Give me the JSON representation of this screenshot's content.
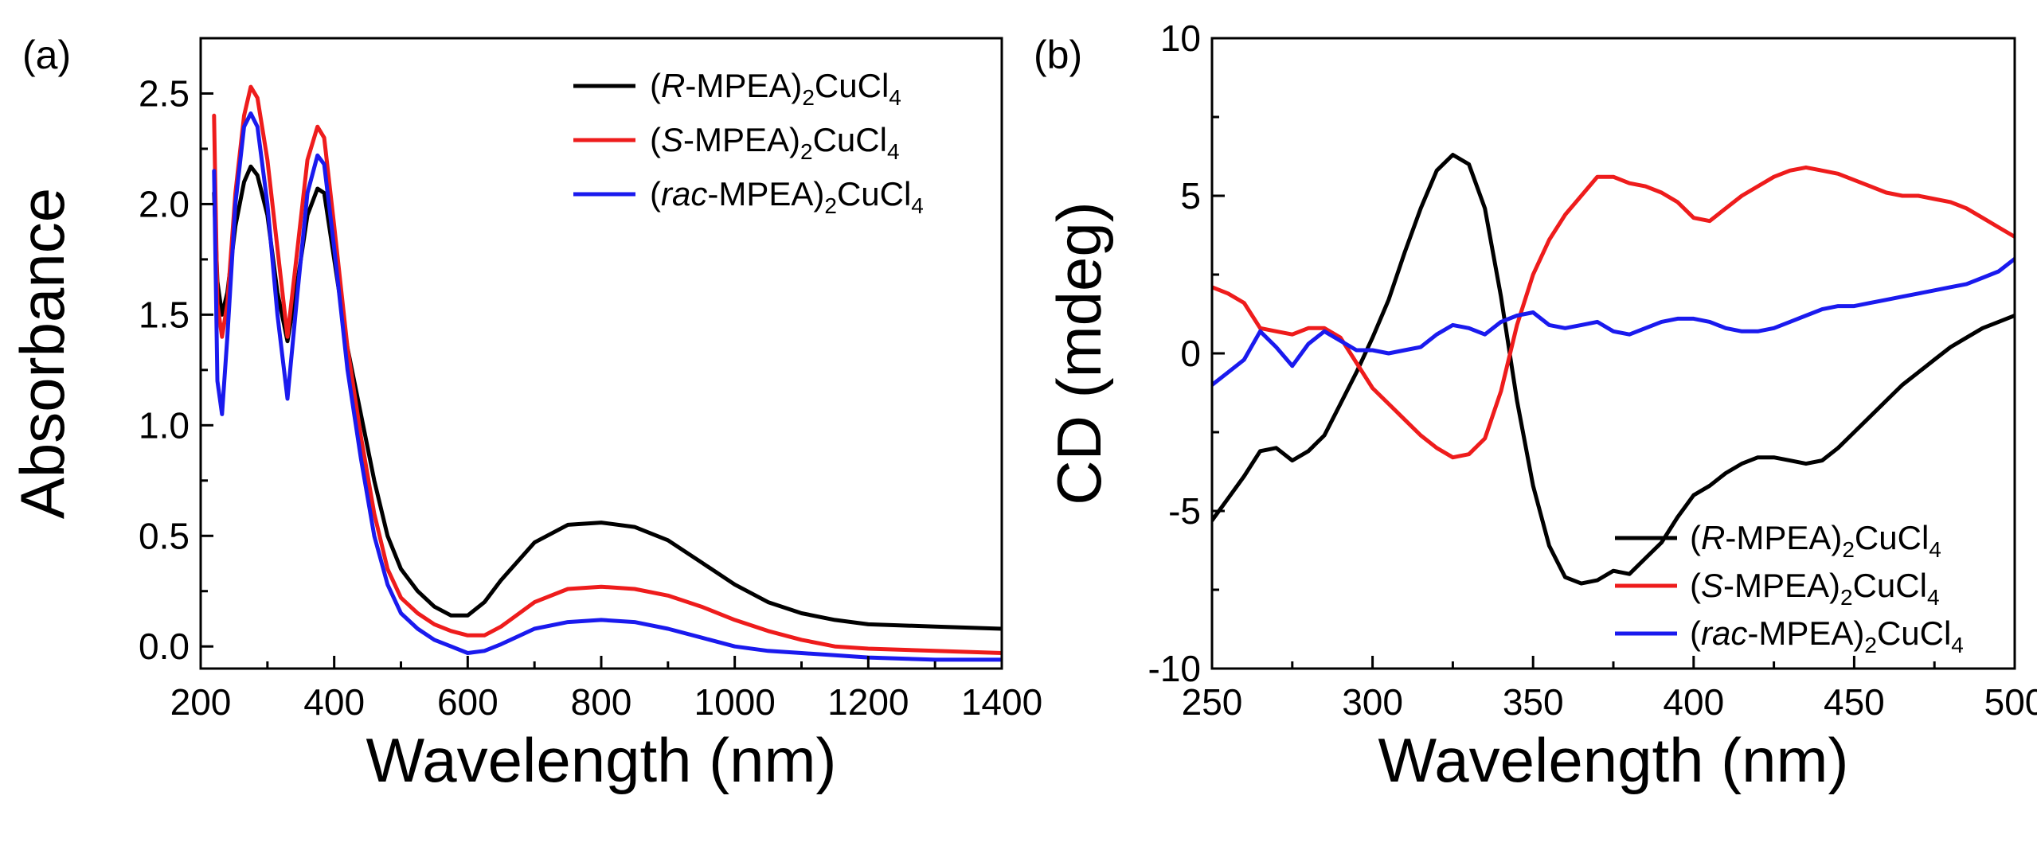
{
  "chart_data": [
    {
      "type": "line",
      "panel_label": "(a)",
      "xlabel": "Wavelength (nm)",
      "ylabel": "Absorbance",
      "xlim": [
        200,
        1400
      ],
      "ylim": [
        -0.1,
        2.75
      ],
      "xticks": [
        200,
        400,
        600,
        800,
        1000,
        1200,
        1400
      ],
      "xtick_labels": [
        "200",
        "400",
        "600",
        "800",
        "1000",
        "1200",
        "1400"
      ],
      "yticks": [
        0.0,
        0.5,
        1.0,
        1.5,
        2.0,
        2.5
      ],
      "ytick_labels": [
        "0.0",
        "0.5",
        "1.0",
        "1.5",
        "2.0",
        "2.5"
      ],
      "legend_position": "top-right",
      "series": [
        {
          "name": "(R-MPEA)2CuCl4",
          "legend": {
            "open": "(",
            "ital": "R",
            "mid": "-MPEA)",
            "sub1": "2",
            "mid2": "CuCl",
            "sub2": "4"
          },
          "color": "#000000",
          "x": [
            220,
            225,
            232,
            240,
            252,
            265,
            275,
            285,
            300,
            315,
            330,
            345,
            360,
            375,
            385,
            400,
            420,
            440,
            460,
            480,
            500,
            525,
            550,
            575,
            600,
            625,
            650,
            700,
            750,
            800,
            850,
            900,
            950,
            1000,
            1050,
            1100,
            1150,
            1200,
            1300,
            1400
          ],
          "y": [
            2.05,
            1.65,
            1.5,
            1.6,
            1.9,
            2.1,
            2.17,
            2.13,
            1.95,
            1.6,
            1.38,
            1.65,
            1.95,
            2.07,
            2.05,
            1.75,
            1.35,
            1.05,
            0.75,
            0.5,
            0.35,
            0.25,
            0.18,
            0.14,
            0.14,
            0.2,
            0.3,
            0.47,
            0.55,
            0.56,
            0.54,
            0.48,
            0.38,
            0.28,
            0.2,
            0.15,
            0.12,
            0.1,
            0.09,
            0.08
          ]
        },
        {
          "name": "(S-MPEA)2CuCl4",
          "legend": {
            "open": "(",
            "ital": "S",
            "mid": "-MPEA)",
            "sub1": "2",
            "mid2": "CuCl",
            "sub2": "4"
          },
          "color": "#ee1c1c",
          "x": [
            220,
            225,
            232,
            240,
            252,
            265,
            275,
            285,
            300,
            315,
            330,
            345,
            360,
            375,
            385,
            400,
            420,
            440,
            460,
            480,
            500,
            525,
            550,
            575,
            600,
            625,
            650,
            700,
            750,
            800,
            850,
            900,
            950,
            1000,
            1050,
            1100,
            1150,
            1200,
            1300,
            1400
          ],
          "y": [
            2.4,
            1.55,
            1.4,
            1.55,
            2.05,
            2.4,
            2.53,
            2.48,
            2.2,
            1.8,
            1.4,
            1.8,
            2.2,
            2.35,
            2.3,
            1.9,
            1.35,
            0.95,
            0.6,
            0.35,
            0.22,
            0.15,
            0.1,
            0.07,
            0.05,
            0.05,
            0.09,
            0.2,
            0.26,
            0.27,
            0.26,
            0.23,
            0.18,
            0.12,
            0.07,
            0.03,
            0.0,
            -0.01,
            -0.02,
            -0.03
          ]
        },
        {
          "name": "(rac-MPEA)2CuCl4",
          "legend": {
            "open": "(",
            "ital": "rac",
            "mid": "-MPEA)",
            "sub1": "2",
            "mid2": "CuCl",
            "sub2": "4"
          },
          "color": "#1a1aee",
          "x": [
            220,
            225,
            232,
            240,
            252,
            265,
            275,
            285,
            300,
            315,
            330,
            345,
            360,
            375,
            385,
            400,
            420,
            440,
            460,
            480,
            500,
            525,
            550,
            575,
            600,
            625,
            650,
            700,
            750,
            800,
            850,
            900,
            950,
            1000,
            1050,
            1100,
            1150,
            1200,
            1300,
            1400
          ],
          "y": [
            2.15,
            1.2,
            1.05,
            1.4,
            2.0,
            2.35,
            2.41,
            2.35,
            2.0,
            1.5,
            1.12,
            1.6,
            2.05,
            2.22,
            2.18,
            1.8,
            1.25,
            0.85,
            0.5,
            0.28,
            0.15,
            0.08,
            0.03,
            0.0,
            -0.03,
            -0.02,
            0.01,
            0.08,
            0.11,
            0.12,
            0.11,
            0.08,
            0.04,
            0.0,
            -0.02,
            -0.03,
            -0.04,
            -0.05,
            -0.06,
            -0.06
          ]
        }
      ]
    },
    {
      "type": "line",
      "panel_label": "(b)",
      "xlabel": "Wavelength (nm)",
      "ylabel": "CD (mdeg)",
      "xlim": [
        250,
        500
      ],
      "ylim": [
        -10,
        10
      ],
      "xticks": [
        250,
        300,
        350,
        400,
        450,
        500
      ],
      "xtick_labels": [
        "250",
        "300",
        "350",
        "400",
        "450",
        "500"
      ],
      "yticks": [
        -10,
        -5,
        0,
        5,
        10
      ],
      "ytick_labels": [
        "-10",
        "-5",
        "0",
        "5",
        "10"
      ],
      "legend_position": "bottom-right",
      "series": [
        {
          "name": "(R-MPEA)2CuCl4",
          "legend": {
            "open": "(",
            "ital": "R",
            "mid": "-MPEA)",
            "sub1": "2",
            "mid2": "CuCl",
            "sub2": "4"
          },
          "color": "#000000",
          "x": [
            250,
            255,
            260,
            265,
            270,
            275,
            280,
            285,
            290,
            295,
            300,
            305,
            310,
            315,
            320,
            325,
            330,
            335,
            340,
            345,
            350,
            355,
            360,
            365,
            370,
            375,
            380,
            385,
            390,
            395,
            400,
            405,
            410,
            415,
            420,
            425,
            430,
            435,
            440,
            445,
            450,
            455,
            460,
            465,
            470,
            475,
            480,
            485,
            490,
            495,
            500
          ],
          "y": [
            -5.3,
            -4.6,
            -3.9,
            -3.1,
            -3.0,
            -3.4,
            -3.1,
            -2.6,
            -1.6,
            -0.6,
            0.5,
            1.7,
            3.2,
            4.6,
            5.8,
            6.3,
            6.0,
            4.6,
            1.8,
            -1.5,
            -4.2,
            -6.1,
            -7.1,
            -7.3,
            -7.2,
            -6.9,
            -7.0,
            -6.5,
            -6.0,
            -5.2,
            -4.5,
            -4.2,
            -3.8,
            -3.5,
            -3.3,
            -3.3,
            -3.4,
            -3.5,
            -3.4,
            -3.0,
            -2.5,
            -2.0,
            -1.5,
            -1.0,
            -0.6,
            -0.2,
            0.2,
            0.5,
            0.8,
            1.0,
            1.2
          ]
        },
        {
          "name": "(S-MPEA)2CuCl4",
          "legend": {
            "open": "(",
            "ital": "S",
            "mid": "-MPEA)",
            "sub1": "2",
            "mid2": "CuCl",
            "sub2": "4"
          },
          "color": "#ee1c1c",
          "x": [
            250,
            255,
            260,
            265,
            270,
            275,
            280,
            285,
            290,
            295,
            300,
            305,
            310,
            315,
            320,
            325,
            330,
            335,
            340,
            345,
            350,
            355,
            360,
            365,
            370,
            375,
            380,
            385,
            390,
            395,
            400,
            405,
            410,
            415,
            420,
            425,
            430,
            435,
            440,
            445,
            450,
            455,
            460,
            465,
            470,
            475,
            480,
            485,
            490,
            495,
            500
          ],
          "y": [
            2.1,
            1.9,
            1.6,
            0.8,
            0.7,
            0.6,
            0.8,
            0.8,
            0.5,
            -0.3,
            -1.1,
            -1.6,
            -2.1,
            -2.6,
            -3.0,
            -3.3,
            -3.2,
            -2.7,
            -1.2,
            0.9,
            2.5,
            3.6,
            4.4,
            5.0,
            5.6,
            5.6,
            5.4,
            5.3,
            5.1,
            4.8,
            4.3,
            4.2,
            4.6,
            5.0,
            5.3,
            5.6,
            5.8,
            5.9,
            5.8,
            5.7,
            5.5,
            5.3,
            5.1,
            5.0,
            5.0,
            4.9,
            4.8,
            4.6,
            4.3,
            4.0,
            3.7
          ]
        },
        {
          "name": "(rac-MPEA)2CuCl4",
          "legend": {
            "open": "(",
            "ital": "rac",
            "mid": "-MPEA)",
            "sub1": "2",
            "mid2": "CuCl",
            "sub2": "4"
          },
          "color": "#1a1aee",
          "x": [
            250,
            255,
            260,
            265,
            270,
            275,
            280,
            285,
            290,
            295,
            300,
            305,
            310,
            315,
            320,
            325,
            330,
            335,
            340,
            345,
            350,
            355,
            360,
            365,
            370,
            375,
            380,
            385,
            390,
            395,
            400,
            405,
            410,
            415,
            420,
            425,
            430,
            435,
            440,
            445,
            450,
            455,
            460,
            465,
            470,
            475,
            480,
            485,
            490,
            495,
            500
          ],
          "y": [
            -1.0,
            -0.6,
            -0.2,
            0.7,
            0.2,
            -0.4,
            0.3,
            0.7,
            0.4,
            0.1,
            0.1,
            0.0,
            0.1,
            0.2,
            0.6,
            0.9,
            0.8,
            0.6,
            1.0,
            1.2,
            1.3,
            0.9,
            0.8,
            0.9,
            1.0,
            0.7,
            0.6,
            0.8,
            1.0,
            1.1,
            1.1,
            1.0,
            0.8,
            0.7,
            0.7,
            0.8,
            1.0,
            1.2,
            1.4,
            1.5,
            1.5,
            1.6,
            1.7,
            1.8,
            1.9,
            2.0,
            2.1,
            2.2,
            2.4,
            2.6,
            3.0
          ]
        }
      ]
    }
  ]
}
